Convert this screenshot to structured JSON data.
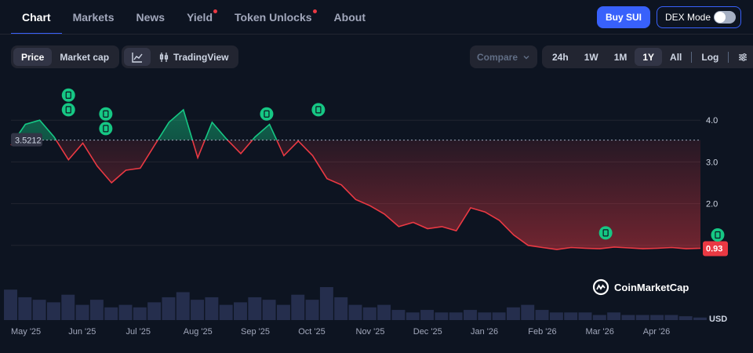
{
  "tabs": [
    {
      "label": "Chart",
      "active": true,
      "dot": false
    },
    {
      "label": "Markets",
      "active": false,
      "dot": false
    },
    {
      "label": "News",
      "active": false,
      "dot": false
    },
    {
      "label": "Yield",
      "active": false,
      "dot": true
    },
    {
      "label": "Token Unlocks",
      "active": false,
      "dot": true
    },
    {
      "label": "About",
      "active": false,
      "dot": false
    }
  ],
  "header": {
    "buy_label": "Buy SUI",
    "dex_label": "DEX Mode"
  },
  "toolbar": {
    "price_label": "Price",
    "marketcap_label": "Market cap",
    "tradingview_label": "TradingView",
    "compare_label": "Compare",
    "ranges": [
      "24h",
      "1W",
      "1M",
      "1Y",
      "All"
    ],
    "selected_range": "1Y",
    "log_label": "Log"
  },
  "logo": {
    "text": "CoinMarketCap"
  },
  "colors": {
    "up": "#16c784",
    "down": "#ea3943",
    "accent": "#3861fb"
  },
  "chart_data": {
    "type": "line",
    "baseline": 3.5212,
    "baseline_label": "3.5212",
    "current_label": "0.93",
    "ylim": [
      0,
      5
    ],
    "yticks": [
      {
        "v": 1.0,
        "label": ""
      },
      {
        "v": 2.0,
        "label": "2.0"
      },
      {
        "v": 3.0,
        "label": "3.0"
      },
      {
        "v": 4.0,
        "label": "4.0"
      }
    ],
    "ylabel_volume": "USD",
    "xlabels": [
      {
        "label": "May '25",
        "month": 0
      },
      {
        "label": "Jun '25",
        "month": 1
      },
      {
        "label": "Jul '25",
        "month": 2
      },
      {
        "label": "Aug '25",
        "month": 3
      },
      {
        "label": "Sep '25",
        "month": 4
      },
      {
        "label": "Oct '25",
        "month": 5
      },
      {
        "label": "Nov '25",
        "month": 6
      },
      {
        "label": "Dec '25",
        "month": 7
      },
      {
        "label": "Jan '26",
        "month": 8
      },
      {
        "label": "Feb '26",
        "month": 9
      },
      {
        "label": "Mar '26",
        "month": 10
      },
      {
        "label": "Apr '26",
        "month": 11
      }
    ],
    "series": [
      {
        "x": [
          0,
          0.25,
          0.5,
          0.75,
          1.0,
          1.25,
          1.5,
          1.75,
          2.0,
          2.25,
          2.5,
          2.75,
          3.0,
          3.25,
          3.5,
          3.75,
          4.0,
          4.25,
          4.5,
          4.75,
          5.0,
          5.25,
          5.5,
          5.75,
          6.0,
          6.25,
          6.5,
          6.75,
          7.0,
          7.25,
          7.5,
          7.75,
          8.0,
          8.25,
          8.5,
          8.75,
          9.0,
          9.25,
          9.5,
          9.75,
          10.0,
          10.25,
          10.5,
          10.75,
          11.0,
          11.25,
          11.5,
          11.75,
          12.0
        ],
        "values": [
          3.4,
          3.9,
          4.0,
          3.6,
          3.05,
          3.45,
          2.9,
          2.5,
          2.8,
          2.85,
          3.4,
          3.95,
          4.25,
          3.1,
          3.95,
          3.55,
          3.2,
          3.6,
          3.9,
          3.15,
          3.5,
          3.15,
          2.6,
          2.45,
          2.1,
          1.95,
          1.75,
          1.45,
          1.55,
          1.4,
          1.45,
          1.35,
          1.9,
          1.8,
          1.6,
          1.25,
          1.0,
          0.95,
          0.9,
          0.95,
          0.93,
          0.92,
          0.96,
          0.94,
          0.92,
          0.93,
          0.95,
          0.92,
          0.93
        ]
      }
    ],
    "volume": [
      1.2,
      0.9,
      0.8,
      0.7,
      1.0,
      0.6,
      0.8,
      0.5,
      0.6,
      0.5,
      0.7,
      0.9,
      1.1,
      0.8,
      0.9,
      0.6,
      0.7,
      0.9,
      0.8,
      0.6,
      1.0,
      0.8,
      1.3,
      0.9,
      0.6,
      0.5,
      0.6,
      0.4,
      0.3,
      0.4,
      0.3,
      0.3,
      0.4,
      0.3,
      0.3,
      0.5,
      0.6,
      0.4,
      0.3,
      0.3,
      0.3,
      0.2,
      0.3,
      0.2,
      0.2,
      0.2,
      0.2,
      0.15,
      0.1
    ],
    "annotations": [
      {
        "month": 1.0,
        "value": 4.6
      },
      {
        "month": 1.0,
        "value": 4.25
      },
      {
        "month": 1.65,
        "value": 4.15
      },
      {
        "month": 1.65,
        "value": 3.8
      },
      {
        "month": 4.45,
        "value": 4.15
      },
      {
        "month": 5.35,
        "value": 4.25
      },
      {
        "month": 10.35,
        "value": 1.3
      },
      {
        "month": 12.3,
        "value": 1.25
      }
    ]
  }
}
